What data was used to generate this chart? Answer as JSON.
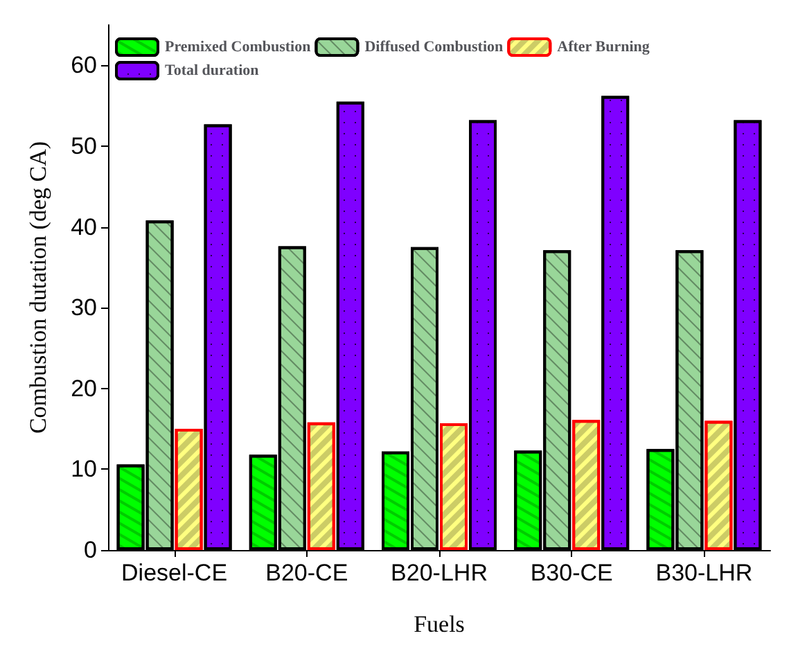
{
  "chart_data": {
    "type": "bar",
    "xlabel": "Fuels",
    "ylabel": "Combustion dutation (deg CA)",
    "categories": [
      "Diesel-CE",
      "B20-CE",
      "B20-LHR",
      "B30-CE",
      "B30-LHR"
    ],
    "series": [
      {
        "name": "Premixed Combustion",
        "color": "#00ff00",
        "values": [
          10.6,
          11.8,
          12.2,
          12.3,
          12.5
        ]
      },
      {
        "name": "Diffused Combustion",
        "color": "#99d699",
        "values": [
          40.8,
          37.6,
          37.5,
          37.1,
          37.1
        ]
      },
      {
        "name": "After Burning",
        "color": "#ffff80",
        "values": [
          15.0,
          15.8,
          15.7,
          16.1,
          16.0
        ]
      },
      {
        "name": "Total duration",
        "color": "#7f00ff",
        "values": [
          52.7,
          55.5,
          53.2,
          56.2,
          53.2
        ]
      }
    ],
    "ylim": [
      0,
      65
    ],
    "yticks": [
      0,
      10,
      20,
      30,
      40,
      50,
      60
    ],
    "grid": false,
    "legend": "top"
  }
}
